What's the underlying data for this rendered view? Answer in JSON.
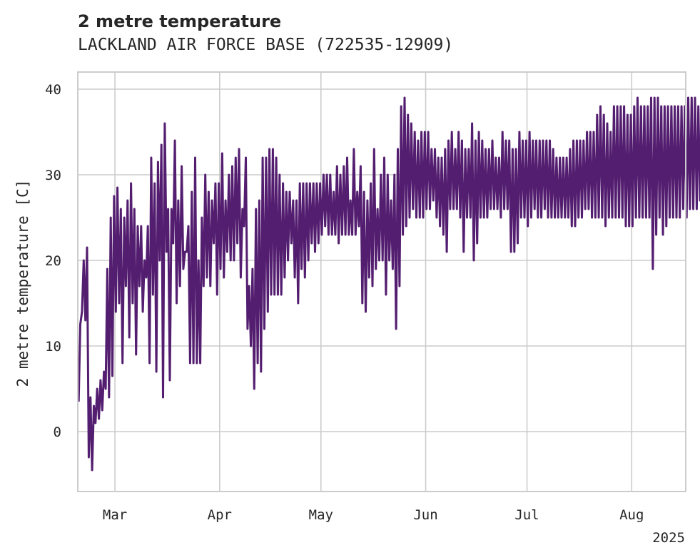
{
  "chart_data": {
    "type": "line",
    "title": "2 metre temperature",
    "subtitle": "LACKLAND AIR FORCE BASE (722535-12909)",
    "xlabel": "",
    "ylabel": "2 metre temperature [C]",
    "xlim": [
      "2025-02-18",
      "2025-08-17"
    ],
    "ylim": [
      -7,
      42
    ],
    "x_ticks": [
      {
        "date": "2025-03-01",
        "label": "Mar"
      },
      {
        "date": "2025-04-01",
        "label": "Apr"
      },
      {
        "date": "2025-05-01",
        "label": "May"
      },
      {
        "date": "2025-06-01",
        "label": "Jun"
      },
      {
        "date": "2025-07-01",
        "label": "Jul"
      },
      {
        "date": "2025-08-01",
        "label": "Aug"
      }
    ],
    "x_offset_label": "2025",
    "y_ticks": [
      0,
      10,
      20,
      30,
      40
    ],
    "grid": true,
    "line_color": "#541e70",
    "series": [
      {
        "resolution": "daily min/max (hourly trace alternates between daily minimum and maximum)",
        "x_start": "2025-02-18",
        "min": [
          3.5,
          14,
          13,
          -3,
          -4.5,
          1,
          1.5,
          2.5,
          5,
          4,
          6.5,
          14,
          15,
          8,
          17,
          11,
          15,
          9,
          17,
          14,
          18,
          8,
          16,
          7,
          20,
          4,
          21,
          6,
          22,
          15,
          17,
          19,
          21,
          8,
          8,
          8,
          8,
          17,
          18,
          17,
          22,
          16,
          19,
          18,
          21,
          20,
          20,
          22,
          18,
          24,
          12,
          10,
          5,
          8,
          7,
          12,
          14,
          16,
          16,
          16,
          16,
          18,
          20,
          22,
          18,
          15,
          19,
          18,
          20,
          22,
          21,
          22,
          23,
          24,
          23,
          23,
          23,
          22,
          23,
          23,
          23,
          23,
          23,
          24,
          15,
          14,
          18,
          17,
          19,
          20,
          20,
          16,
          20,
          19,
          12,
          17,
          23,
          24,
          25,
          26,
          25,
          25,
          25,
          26,
          26,
          27,
          25,
          24,
          23,
          21,
          26,
          26,
          26,
          25,
          21,
          25,
          25,
          20,
          22,
          25,
          25,
          25,
          26,
          26,
          26,
          25,
          26,
          26,
          21,
          21,
          22,
          25,
          25,
          24,
          25,
          26,
          25,
          25,
          26,
          25,
          25,
          25,
          25,
          25,
          25,
          25,
          24,
          24,
          25,
          25,
          26,
          26,
          25,
          25,
          25,
          25,
          24,
          25,
          25,
          25,
          25,
          25,
          24,
          24,
          24,
          25,
          25,
          25,
          25,
          25,
          19,
          23,
          25,
          23,
          24,
          25,
          25,
          25,
          25,
          26,
          25,
          26,
          26,
          26,
          27,
          26
        ],
        "max": [
          12.5,
          20,
          21.5,
          4,
          3,
          5,
          6,
          7,
          19,
          25,
          27.5,
          28.5,
          26,
          25,
          27,
          29,
          26,
          24,
          24,
          20,
          24,
          32,
          29,
          31.5,
          33.5,
          36,
          26,
          26,
          34,
          27,
          31,
          21,
          24,
          28,
          32,
          20,
          25,
          30,
          28,
          27,
          29,
          29,
          32.5,
          27,
          30,
          31,
          32,
          33,
          26,
          32,
          17,
          19,
          26,
          27,
          32,
          32,
          33,
          33,
          32,
          30,
          29,
          28,
          28,
          27,
          27,
          29,
          29,
          29,
          29,
          29,
          29,
          29,
          30,
          30,
          30,
          28,
          31,
          30,
          31,
          32,
          27,
          33,
          28,
          31,
          28,
          27,
          29,
          33,
          26,
          30,
          32,
          30,
          27,
          30,
          33,
          38,
          39,
          37,
          36,
          35,
          34,
          35,
          35,
          35,
          33,
          33,
          32,
          32,
          33,
          34,
          35,
          33,
          35,
          34,
          33,
          33,
          36,
          34,
          35,
          34,
          33,
          33,
          34,
          32,
          32,
          35,
          34,
          34,
          33,
          33,
          35,
          34,
          34,
          35,
          34,
          34,
          34,
          34,
          34,
          34,
          33,
          32,
          32,
          32,
          32,
          33,
          34,
          34,
          34,
          34,
          35,
          35,
          35,
          37,
          38,
          37,
          36,
          35,
          38,
          38,
          38,
          38,
          37,
          37,
          38,
          39,
          38,
          38,
          38,
          39,
          39,
          39,
          38,
          38,
          38,
          38,
          38,
          38,
          38,
          38,
          39,
          39,
          39,
          38,
          39
        ]
      }
    ]
  }
}
